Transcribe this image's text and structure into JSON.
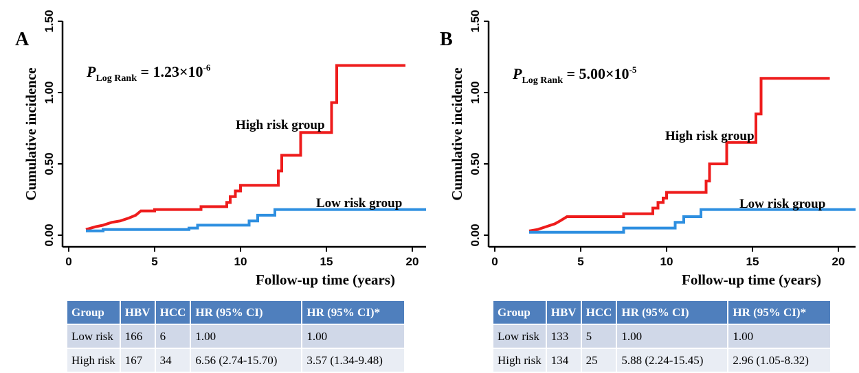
{
  "colors": {
    "high": "#ee1c1c",
    "low": "#2e8fe0",
    "header_bg": "#4f7fbd",
    "row1_bg": "#d0d8e8",
    "row2_bg": "#e9edf4"
  },
  "panels": [
    {
      "letter": "A",
      "p_value": {
        "base": "1.23×10",
        "exponent": "-6"
      },
      "table": {
        "headers": [
          "Group",
          "HBV",
          "HCC",
          "HR (95% CI)",
          "HR (95% CI)*"
        ],
        "rows": [
          [
            "Low risk",
            "166",
            "6",
            "1.00",
            "1.00"
          ],
          [
            "High risk",
            "167",
            "34",
            "6.56 (2.74-15.70)",
            "3.57 (1.34-9.48)"
          ]
        ]
      }
    },
    {
      "letter": "B",
      "p_value": {
        "base": "5.00×10",
        "exponent": "-5"
      },
      "table": {
        "headers": [
          "Group",
          "HBV",
          "HCC",
          "HR (95% CI)",
          "HR (95% CI)*"
        ],
        "rows": [
          [
            "Low risk",
            "133",
            "5",
            "1.00",
            "1.00"
          ],
          [
            "High risk",
            "134",
            "25",
            "5.88 (2.24-15.45)",
            "2.96 (1.05-8.32)"
          ]
        ]
      }
    }
  ],
  "chart_data": [
    {
      "type": "line",
      "xlabel": "Follow-up time (years)",
      "ylabel": "Cumulative incidence",
      "xlim": [
        0,
        21
      ],
      "ylim": [
        0,
        1.5
      ],
      "xticks": [
        "0",
        "5",
        "10",
        "15",
        "20"
      ],
      "yticks": [
        "0.00",
        "0.50",
        "1.00",
        "1.50"
      ],
      "p_label": "Log Rank",
      "series": [
        {
          "name": "High risk group",
          "x": [
            1.0,
            1.3,
            1.6,
            2.0,
            2.5,
            3.0,
            3.5,
            3.9,
            4.2,
            5.0,
            5.0,
            7.7,
            7.7,
            9.2,
            9.2,
            9.4,
            9.4,
            9.7,
            9.7,
            10.0,
            10.0,
            12.2,
            12.2,
            12.4,
            12.4,
            13.5,
            13.5,
            15.3,
            15.3,
            15.6,
            15.6,
            19.6
          ],
          "y": [
            0.04,
            0.05,
            0.06,
            0.07,
            0.09,
            0.1,
            0.12,
            0.14,
            0.17,
            0.17,
            0.18,
            0.18,
            0.2,
            0.2,
            0.23,
            0.23,
            0.27,
            0.27,
            0.31,
            0.31,
            0.35,
            0.35,
            0.45,
            0.45,
            0.56,
            0.56,
            0.72,
            0.72,
            0.93,
            0.93,
            1.19,
            1.19
          ]
        },
        {
          "name": "Low risk group",
          "x": [
            1.0,
            2.0,
            2.0,
            7.0,
            7.0,
            7.5,
            7.5,
            10.5,
            10.5,
            11.0,
            11.0,
            12.0,
            12.0,
            21.0
          ],
          "y": [
            0.03,
            0.03,
            0.04,
            0.04,
            0.05,
            0.05,
            0.07,
            0.07,
            0.1,
            0.1,
            0.14,
            0.14,
            0.18,
            0.18
          ]
        }
      ]
    },
    {
      "type": "line",
      "xlabel": "Follow-up time (years)",
      "ylabel": "Cumulative incidence",
      "xlim": [
        0,
        21
      ],
      "ylim": [
        0,
        1.5
      ],
      "xticks": [
        "0",
        "5",
        "10",
        "15",
        "20"
      ],
      "yticks": [
        "0.00",
        "0.50",
        "1.00",
        "1.50"
      ],
      "p_label": "Log Rank",
      "series": [
        {
          "name": "High risk group",
          "x": [
            2.0,
            2.5,
            3.0,
            3.5,
            3.8,
            4.2,
            7.5,
            7.5,
            9.2,
            9.2,
            9.5,
            9.5,
            9.8,
            9.8,
            10.0,
            10.0,
            12.3,
            12.3,
            12.5,
            12.5,
            13.5,
            13.5,
            15.2,
            15.2,
            15.5,
            15.5,
            19.5
          ],
          "y": [
            0.03,
            0.04,
            0.06,
            0.08,
            0.1,
            0.13,
            0.13,
            0.15,
            0.15,
            0.19,
            0.19,
            0.23,
            0.23,
            0.26,
            0.26,
            0.3,
            0.3,
            0.38,
            0.38,
            0.5,
            0.5,
            0.65,
            0.65,
            0.85,
            0.85,
            1.1,
            1.1
          ]
        },
        {
          "name": "Low risk group",
          "x": [
            2.0,
            7.5,
            7.5,
            10.5,
            10.5,
            11.0,
            11.0,
            12.0,
            12.0,
            21.0
          ],
          "y": [
            0.02,
            0.02,
            0.05,
            0.05,
            0.09,
            0.09,
            0.13,
            0.13,
            0.18,
            0.18
          ]
        }
      ]
    }
  ]
}
